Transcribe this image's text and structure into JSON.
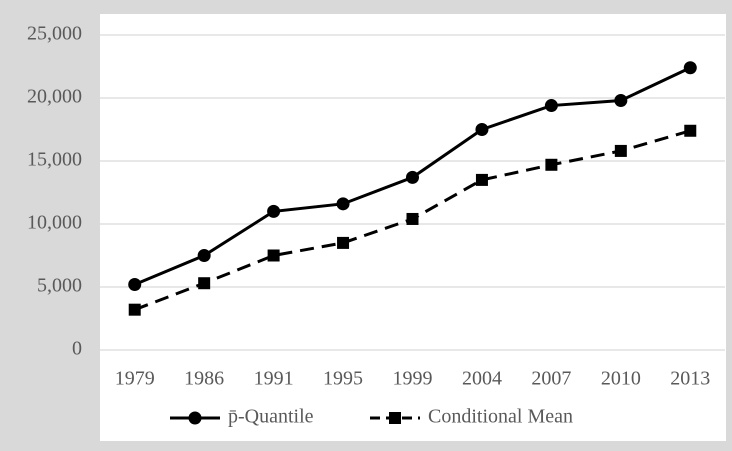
{
  "chart_data": {
    "type": "line",
    "categories": [
      "1979",
      "1986",
      "1991",
      "1995",
      "1999",
      "2004",
      "2007",
      "2010",
      "2013"
    ],
    "series": [
      {
        "name": "p̄-Quantile",
        "color": "#000000",
        "marker": "circle",
        "dash": "solid",
        "values": [
          5200,
          7500,
          11000,
          11600,
          13700,
          17500,
          19400,
          19800,
          22400
        ]
      },
      {
        "name": "Conditional Mean",
        "color": "#000000",
        "marker": "square",
        "dash": "dashed",
        "values": [
          3200,
          5300,
          7500,
          8500,
          10400,
          13500,
          14700,
          15800,
          17400
        ]
      }
    ],
    "ylim": [
      0,
      25000
    ],
    "yticks": [
      0,
      {
        "value": 5000,
        "label": "5,000"
      },
      {
        "value": 10000,
        "label": "10,000"
      },
      {
        "value": 15000,
        "label": "15,000"
      },
      {
        "value": 20000,
        "label": "20,000"
      },
      {
        "value": 25000,
        "label": "25,000"
      }
    ],
    "grid": true,
    "legend": "bottom"
  }
}
